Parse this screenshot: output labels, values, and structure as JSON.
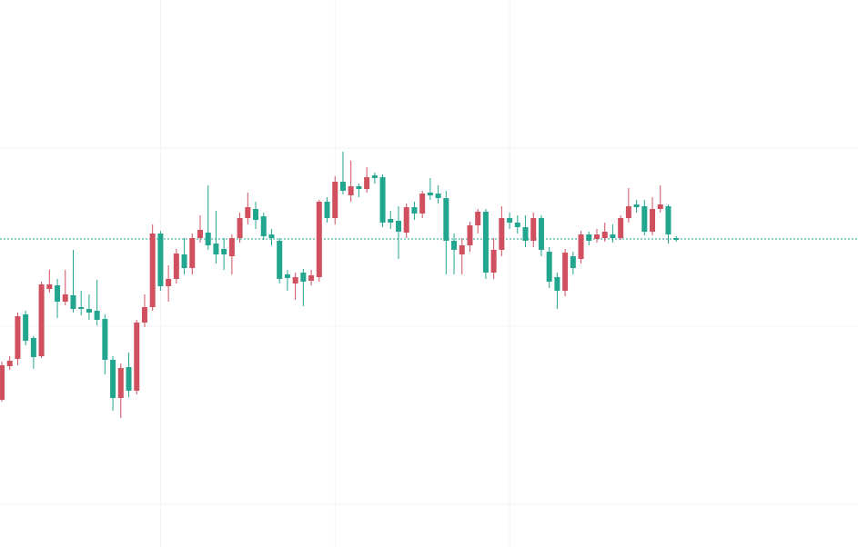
{
  "chart_data": {
    "type": "candlestick",
    "up_color": "#d1505f",
    "down_color": "#22a68f",
    "grid": true,
    "ylim": [
      0,
      602
    ],
    "yticks": [
      47,
      243,
      439
    ],
    "xticks": [
      20,
      42,
      64
    ],
    "price_line": 339,
    "open": [
      162,
      199,
      207,
      256,
      230,
      210,
      284,
      288,
      270,
      277,
      264,
      262,
      260,
      251,
      206,
      164,
      198,
      172,
      247,
      264,
      345,
      287,
      295,
      322,
      307,
      340,
      346,
      334,
      328,
      320,
      340,
      362,
      372,
      364,
      344,
      337,
      300,
      290,
      302,
      293,
      297,
      380,
      362,
      402,
      387,
      397,
      394,
      409,
      407,
      361,
      359,
      346,
      374,
      367,
      390,
      389,
      384,
      337,
      322,
      332,
      354,
      369,
      302,
      327,
      362,
      357,
      352,
      337,
      362,
      325,
      297,
      282,
      320,
      317,
      344,
      339,
      340,
      344,
      340,
      362,
      377,
      375,
      347,
      372,
      375,
      340
    ],
    "close": [
      200,
      205,
      254,
      227,
      209,
      289,
      289,
      270,
      278,
      262,
      262,
      258,
      250,
      206,
      164,
      197,
      172,
      247,
      264,
      345,
      287,
      295,
      323,
      307,
      340,
      349,
      332,
      322,
      322,
      340,
      362,
      374,
      360,
      342,
      340,
      295,
      296,
      297,
      292,
      299,
      380,
      362,
      402,
      392,
      397,
      394,
      407,
      406,
      357,
      357,
      347,
      374,
      367,
      389,
      387,
      384,
      337,
      327,
      332,
      354,
      369,
      302,
      327,
      362,
      357,
      352,
      337,
      362,
      327,
      292,
      282,
      324,
      307,
      344,
      337,
      344,
      347,
      340,
      362,
      375,
      374,
      347,
      372,
      377,
      344,
      338
    ],
    "high": [
      204,
      210,
      258,
      260,
      232,
      292,
      305,
      295,
      305,
      327,
      282,
      278,
      294,
      256,
      210,
      202,
      214,
      250,
      278,
      355,
      348,
      310,
      328,
      340,
      345,
      365,
      398,
      370,
      340,
      344,
      368,
      390,
      380,
      368,
      350,
      340,
      305,
      302,
      306,
      305,
      382,
      385,
      408,
      435,
      425,
      400,
      418,
      412,
      410,
      370,
      375,
      378,
      380,
      392,
      406,
      398,
      392,
      345,
      340,
      358,
      372,
      372,
      340,
      375,
      368,
      365,
      365,
      368,
      365,
      330,
      302,
      328,
      325,
      348,
      347,
      350,
      357,
      355,
      365,
      395,
      382,
      382,
      385,
      398,
      377,
      342
    ],
    "low": [
      160,
      195,
      200,
      222,
      196,
      208,
      280,
      252,
      266,
      258,
      255,
      250,
      244,
      190,
      150,
      142,
      165,
      168,
      242,
      260,
      282,
      270,
      290,
      300,
      300,
      335,
      327,
      312,
      305,
      300,
      335,
      355,
      350,
      338,
      332,
      290,
      282,
      272,
      265,
      288,
      292,
      357,
      355,
      388,
      380,
      385,
      390,
      400,
      352,
      350,
      317,
      340,
      360,
      362,
      382,
      378,
      300,
      300,
      300,
      325,
      345,
      295,
      295,
      320,
      350,
      345,
      330,
      330,
      320,
      285,
      262,
      276,
      300,
      312,
      332,
      335,
      336,
      335,
      338,
      357,
      368,
      343,
      343,
      368,
      334,
      336
    ]
  }
}
